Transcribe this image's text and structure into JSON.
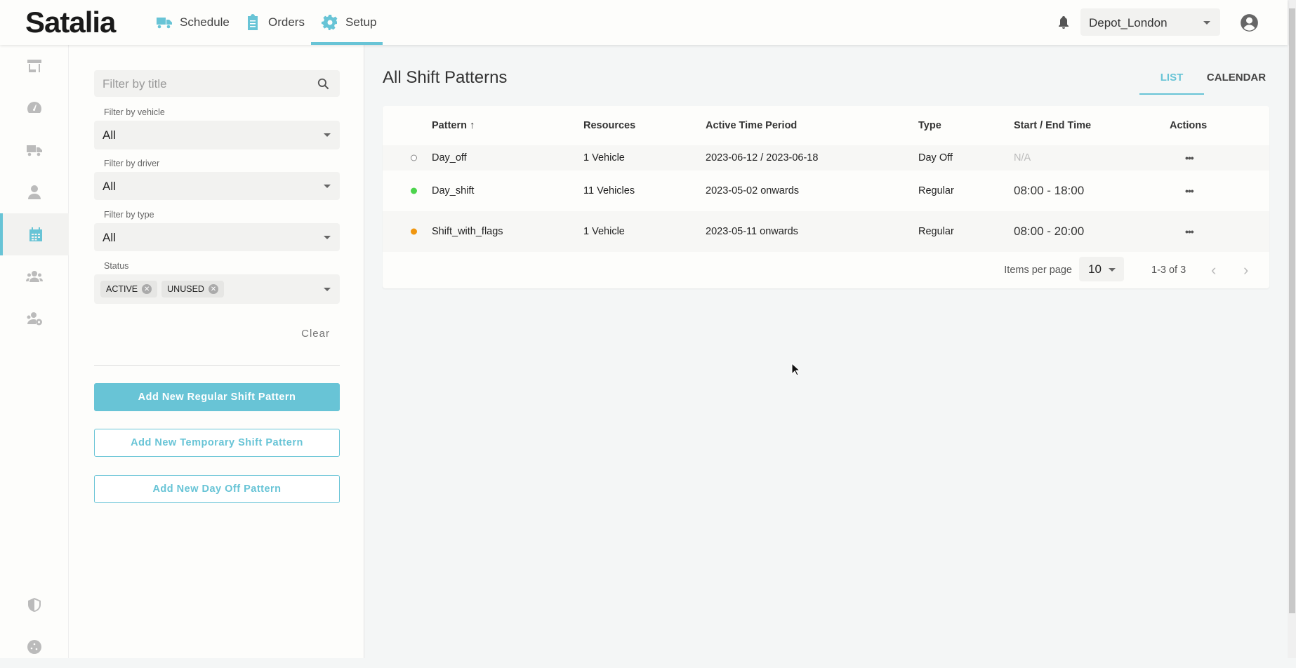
{
  "app": {
    "logo": "Satalia"
  },
  "nav": {
    "items": [
      {
        "label": "Schedule",
        "icon": "truck-icon"
      },
      {
        "label": "Orders",
        "icon": "clipboard-icon"
      },
      {
        "label": "Setup",
        "icon": "gear-icon",
        "active": true
      }
    ]
  },
  "header": {
    "depot": "Depot_London"
  },
  "rail": {
    "items": [
      "store-icon",
      "dashboard-icon",
      "truck-icon",
      "person-icon",
      "calendar-icon",
      "group-icon",
      "group-settings-icon",
      "shield-icon",
      "cookie-icon"
    ],
    "active": "calendar-icon"
  },
  "filters": {
    "title_placeholder": "Filter by title",
    "vehicle_label": "Filter by vehicle",
    "vehicle_value": "All",
    "driver_label": "Filter by driver",
    "driver_value": "All",
    "type_label": "Filter by type",
    "type_value": "All",
    "status_label": "Status",
    "status_chips": [
      "ACTIVE",
      "UNUSED"
    ],
    "clear": "Clear"
  },
  "actions": {
    "add_regular": "Add New Regular Shift Pattern",
    "add_temporary": "Add New Temporary Shift Pattern",
    "add_dayoff": "Add New Day Off Pattern"
  },
  "main": {
    "title": "All Shift Patterns",
    "tabs": [
      "LIST",
      "CALENDAR"
    ],
    "active_tab": "LIST"
  },
  "table": {
    "columns": [
      "Pattern",
      "Resources",
      "Active Time Period",
      "Type",
      "Start / End Time",
      "Actions"
    ],
    "sort": {
      "column": "Pattern",
      "direction": "asc"
    },
    "rows": [
      {
        "status_color": "#ffffff",
        "pattern": "Day_off",
        "resources": "1 Vehicle",
        "period": "2023-06-12 / 2023-06-18",
        "type": "Day Off",
        "time": "N/A"
      },
      {
        "status_color": "#4cd44c",
        "pattern": "Day_shift",
        "resources": "11 Vehicles",
        "period": "2023-05-02 onwards",
        "type": "Regular",
        "time": "08:00 - 18:00"
      },
      {
        "status_color": "#f0960f",
        "pattern": "Shift_with_flags",
        "resources": "1 Vehicle",
        "period": "2023-05-11 onwards",
        "type": "Regular",
        "time": "08:00 - 20:00"
      }
    ],
    "pagination": {
      "label": "Items per page",
      "per_page": "10",
      "range": "1-3 of 3"
    }
  },
  "colors": {
    "accent": "#68c4d6"
  }
}
